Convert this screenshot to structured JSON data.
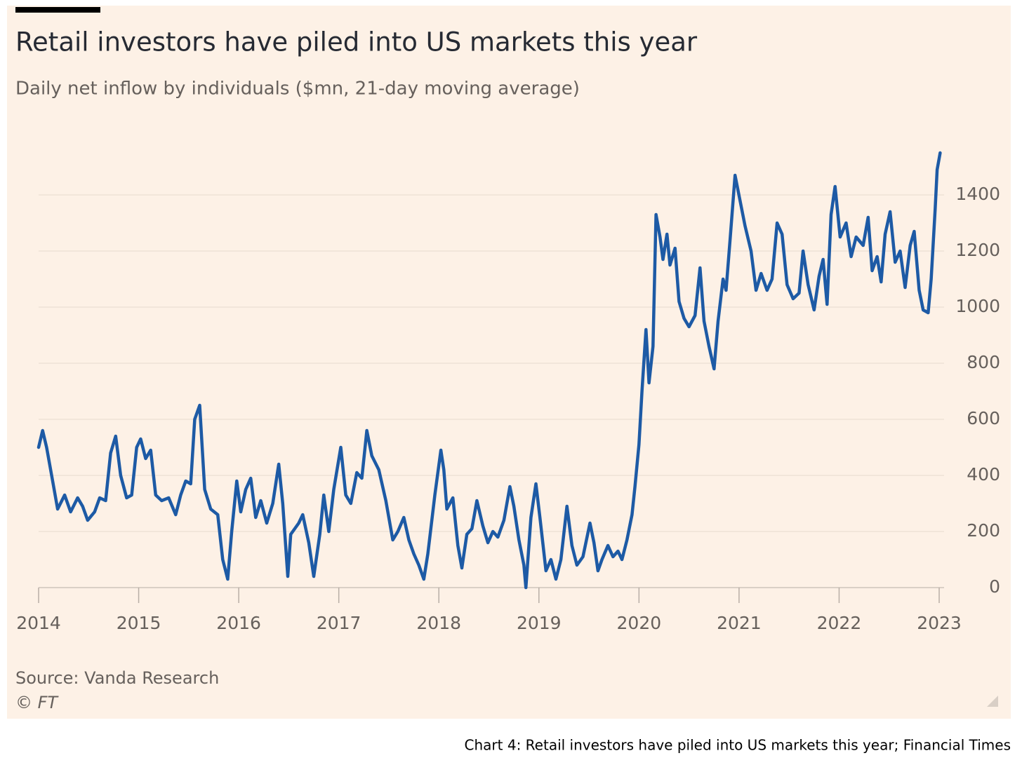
{
  "chart_data": {
    "type": "line",
    "title": "Retail investors have piled into US markets this year",
    "subtitle": "Daily net inflow by individuals ($mn, 21-day moving average)",
    "source": "Source: Vanda Research",
    "credit": "© FT",
    "caption": "Chart 4: Retail investors have piled into US markets this year; Financial Times",
    "color": "#1d5aa5",
    "grid": true,
    "xlim": [
      2014,
      2023.06
    ],
    "xticks": [
      2014,
      2015,
      2016,
      2017,
      2018,
      2019,
      2020,
      2021,
      2022,
      2023
    ],
    "ylim": [
      0,
      1550
    ],
    "yticks": [
      0,
      200,
      400,
      600,
      800,
      1000,
      1200,
      1400
    ],
    "x": [
      2014.0,
      2014.04,
      2014.08,
      2014.14,
      2014.19,
      2014.26,
      2014.32,
      2014.39,
      2014.44,
      2014.49,
      2014.56,
      2014.61,
      2014.67,
      2014.72,
      2014.77,
      2014.82,
      2014.88,
      2014.93,
      2014.98,
      2015.02,
      2015.07,
      2015.12,
      2015.17,
      2015.23,
      2015.3,
      2015.37,
      2015.42,
      2015.47,
      2015.52,
      2015.56,
      2015.61,
      2015.66,
      2015.72,
      2015.79,
      2015.84,
      2015.89,
      2015.93,
      2015.98,
      2016.02,
      2016.07,
      2016.12,
      2016.17,
      2016.22,
      2016.28,
      2016.34,
      2016.4,
      2016.44,
      2016.49,
      2016.52,
      2016.6,
      2016.64,
      2016.7,
      2016.75,
      2016.81,
      2016.85,
      2016.9,
      2016.95,
      2017.02,
      2017.07,
      2017.12,
      2017.18,
      2017.23,
      2017.28,
      2017.33,
      2017.4,
      2017.47,
      2017.54,
      2017.59,
      2017.65,
      2017.7,
      2017.75,
      2017.8,
      2017.85,
      2017.89,
      2017.96,
      2018.02,
      2018.05,
      2018.08,
      2018.14,
      2018.19,
      2018.23,
      2018.28,
      2018.33,
      2018.38,
      2018.44,
      2018.49,
      2018.54,
      2018.59,
      2018.65,
      2018.71,
      2018.75,
      2018.8,
      2018.85,
      2018.87,
      2018.92,
      2018.97,
      2019.01,
      2019.07,
      2019.12,
      2019.17,
      2019.22,
      2019.28,
      2019.33,
      2019.38,
      2019.44,
      2019.51,
      2019.55,
      2019.59,
      2019.63,
      2019.69,
      2019.74,
      2019.79,
      2019.83,
      2019.88,
      2019.93,
      2019.96,
      2020.0,
      2020.03,
      2020.07,
      2020.1,
      2020.14,
      2020.17,
      2020.21,
      2020.24,
      2020.28,
      2020.31,
      2020.36,
      2020.4,
      2020.45,
      2020.5,
      2020.56,
      2020.61,
      2020.65,
      2020.7,
      2020.75,
      2020.79,
      2020.84,
      2020.87,
      2020.91,
      2020.96,
      2021.01,
      2021.06,
      2021.12,
      2021.17,
      2021.22,
      2021.28,
      2021.33,
      2021.38,
      2021.43,
      2021.48,
      2021.54,
      2021.6,
      2021.64,
      2021.69,
      2021.75,
      2021.8,
      2021.84,
      2021.88,
      2021.92,
      2021.96,
      2022.01,
      2022.07,
      2022.12,
      2022.17,
      2022.24,
      2022.29,
      2022.33,
      2022.38,
      2022.42,
      2022.46,
      2022.51,
      2022.56,
      2022.61,
      2022.66,
      2022.71,
      2022.75,
      2022.8,
      2022.84,
      2022.89,
      2022.92,
      2022.96,
      2022.98,
      2023.01
    ],
    "values": [
      500,
      560,
      500,
      380,
      280,
      330,
      270,
      320,
      290,
      240,
      270,
      320,
      310,
      480,
      540,
      400,
      320,
      330,
      500,
      530,
      460,
      490,
      330,
      310,
      320,
      260,
      330,
      380,
      370,
      600,
      650,
      350,
      280,
      260,
      100,
      30,
      200,
      380,
      270,
      350,
      390,
      250,
      310,
      230,
      300,
      440,
      300,
      40,
      190,
      230,
      260,
      160,
      40,
      190,
      330,
      200,
      350,
      500,
      330,
      300,
      410,
      390,
      560,
      470,
      420,
      310,
      170,
      200,
      250,
      170,
      120,
      80,
      30,
      120,
      330,
      490,
      420,
      280,
      320,
      150,
      70,
      190,
      210,
      310,
      220,
      160,
      200,
      180,
      240,
      360,
      290,
      170,
      80,
      0,
      250,
      370,
      250,
      60,
      100,
      30,
      100,
      290,
      150,
      80,
      110,
      230,
      160,
      60,
      100,
      150,
      110,
      130,
      100,
      170,
      260,
      360,
      510,
      700,
      920,
      730,
      860,
      1330,
      1250,
      1170,
      1260,
      1150,
      1210,
      1020,
      960,
      930,
      970,
      1140,
      950,
      860,
      780,
      950,
      1100,
      1060,
      1240,
      1470,
      1380,
      1290,
      1200,
      1060,
      1120,
      1060,
      1100,
      1300,
      1260,
      1080,
      1030,
      1050,
      1200,
      1080,
      990,
      1110,
      1170,
      1010,
      1330,
      1430,
      1250,
      1300,
      1180,
      1250,
      1220,
      1320,
      1130,
      1180,
      1090,
      1260,
      1340,
      1160,
      1200,
      1070,
      1220,
      1270,
      1060,
      990,
      980,
      1100,
      1350,
      1490,
      1550
    ]
  }
}
